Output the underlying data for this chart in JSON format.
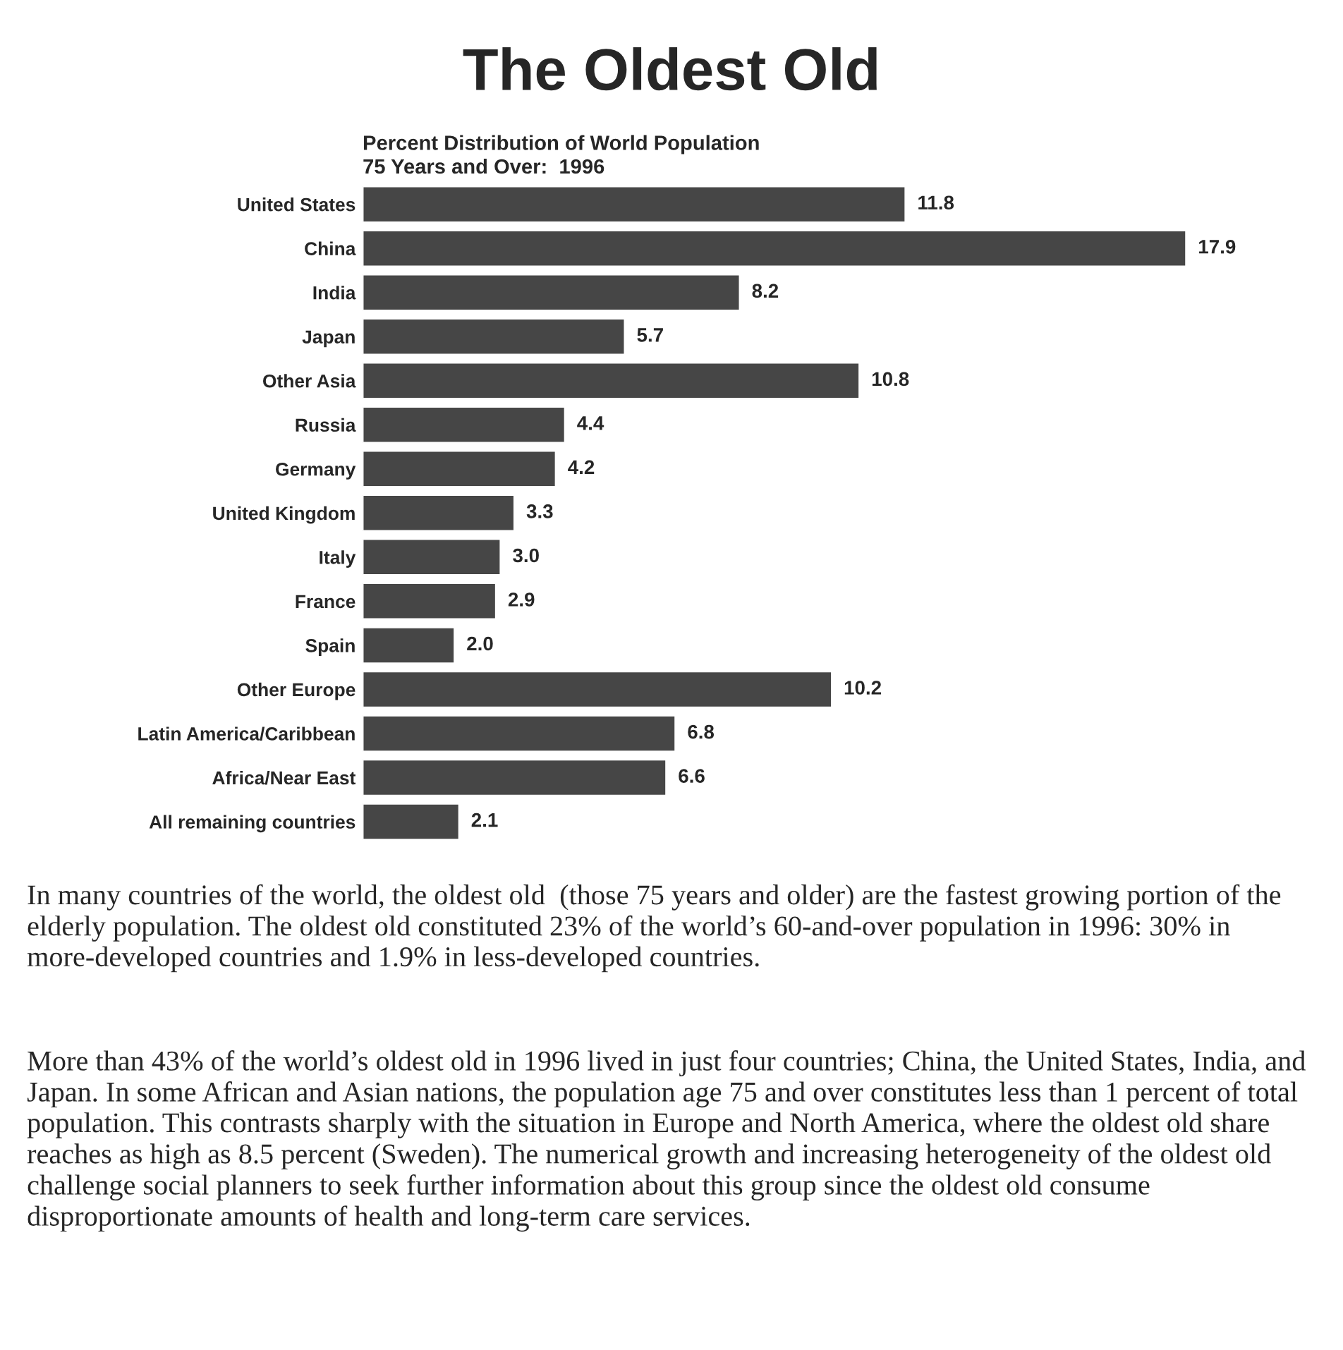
{
  "chart_data": {
    "type": "bar",
    "orientation": "horizontal",
    "title": "The Oldest Old",
    "subtitle": "Percent Distribution of World Population\n75 Years and Over:  1996",
    "categories": [
      "United States",
      "China",
      "India",
      "Japan",
      "Other Asia",
      "Russia",
      "Germany",
      "United Kingdom",
      "Italy",
      "France",
      "Spain",
      "Other Europe",
      "Latin America/Caribbean",
      "Africa/Near East",
      "All remaining countries"
    ],
    "values": [
      11.8,
      17.9,
      8.2,
      5.7,
      10.8,
      4.4,
      4.2,
      3.3,
      3.0,
      2.9,
      2.0,
      10.2,
      6.8,
      6.6,
      2.1
    ],
    "value_labels": [
      "11.8",
      "17.9",
      "8.2",
      "5.7",
      "10.8",
      "4.4",
      "4.2",
      "3.3",
      "3.0",
      "2.9",
      "2.0",
      "10.2",
      "6.8",
      "6.6",
      "2.1"
    ],
    "color": "#464646",
    "annotations": [
      "In many countries of the world, the oldest old  (those 75 years and older) are the fastest growing portion of the elderly population. The oldest old constituted 23% of the world’s 60-and-over population in 1996: 30% in more-developed countries and 1.9% in less-developed countries.",
      "More than 43% of the world’s oldest old in 1996 lived in just four countries; China, the United States, India, and Japan. In some African and Asian nations, the population age 75 and over constitutes less than 1 percent of total population. This contrasts sharply with the situation in Europe and North America, where the oldest old share reaches as high as 8.5 percent (Sweden). The numerical growth and increasing heterogeneity of the oldest old challenge social planners to seek further information about this group since the oldest old consume disproportionate amounts of health and long-term care services."
    ]
  }
}
